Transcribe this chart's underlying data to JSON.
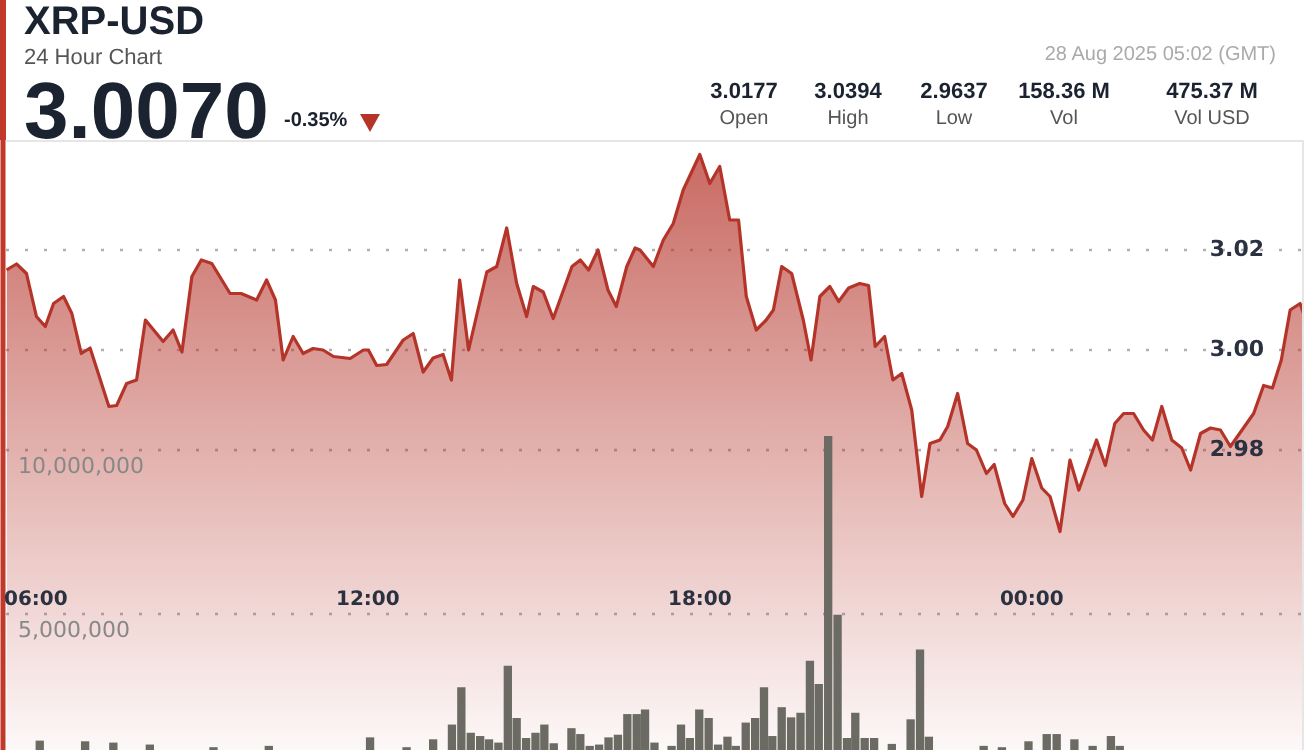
{
  "chart_data": {
    "type": "area",
    "title": "XRP-USD",
    "subtitle": "24 Hour Chart",
    "annotations": [
      "3.0070",
      "-0.35%",
      "28 Aug 2025 05:02 (GMT)",
      "3.0177",
      "Open",
      "3.0394",
      "High",
      "2.9637",
      "Low",
      "158.36 M",
      "Vol",
      "475.37 M",
      "Vol USD"
    ],
    "xlim": [
      5.46,
      28.92
    ],
    "xticks": [
      {
        "value": 6,
        "label": "06:00"
      },
      {
        "value": 12,
        "label": "12:00"
      },
      {
        "value": 18,
        "label": "18:00"
      },
      {
        "value": 24,
        "label": "00:00"
      }
    ],
    "ylim": [
      2.9144,
      3.042
    ],
    "yticks": [
      2.98,
      {
        "value": 3,
        "label": "3.00"
      },
      3.02
    ],
    "y2lim": [
      0,
      19460000
    ],
    "y2ticks": [
      {
        "value": 5000000,
        "label": "5,000,000"
      },
      {
        "value": 10000000,
        "label": "10,000,000"
      }
    ],
    "grid": "y",
    "series": [
      {
        "color": "#b5342a",
        "x": [
          5.47,
          5.65,
          5.83,
          6.01,
          6.17,
          6.32,
          6.5,
          6.65,
          6.82,
          6.98,
          7.32,
          7.46,
          7.64,
          7.82,
          7.98,
          8.3,
          8.48,
          8.64,
          8.82,
          8.99,
          9.18,
          9.51,
          9.71,
          9.99,
          10.17,
          10.33,
          10.47,
          10.65,
          10.83,
          11.01,
          11.19,
          11.38,
          11.68,
          11.92,
          12.01,
          12.16,
          12.34,
          12.64,
          12.82,
          13.0,
          13.18,
          13.36,
          13.51,
          13.66,
          13.82,
          14.15,
          14.33,
          14.51,
          14.69,
          14.87,
          14.99,
          15.17,
          15.35,
          15.69,
          15.84,
          15.99,
          16.16,
          16.34,
          16.49,
          16.68,
          16.83,
          16.92,
          17.16,
          17.34,
          17.52,
          17.7,
          18.0,
          18.18,
          18.36,
          18.54,
          18.7,
          18.84,
          19.02,
          19.2,
          19.33,
          19.48,
          19.66,
          19.87,
          20.01,
          20.17,
          20.35,
          20.51,
          20.69,
          20.89,
          21.05,
          21.17,
          21.34,
          21.49,
          21.65,
          21.83,
          22.01,
          22.16,
          22.34,
          22.48,
          22.66,
          22.84,
          23.0,
          23.18,
          23.32,
          23.51,
          23.66,
          23.84,
          24.0,
          24.18,
          24.33,
          24.51,
          24.69,
          24.85,
          25.17,
          25.33,
          25.5,
          25.66,
          25.84,
          26.02,
          26.18,
          26.35,
          26.53,
          26.71,
          26.87,
          27.05,
          27.23,
          27.41,
          27.59,
          28.01,
          28.19,
          28.35,
          28.51,
          28.67,
          28.85,
          28.92
        ],
        "values": [
          3.016,
          3.0172,
          3.0153,
          3.0067,
          3.0047,
          3.0093,
          3.0107,
          3.0073,
          2.9993,
          3.0004,
          2.9887,
          2.9889,
          2.9933,
          2.994,
          3.006,
          3.0017,
          3.004,
          2.9996,
          3.0147,
          3.018,
          3.0173,
          3.0113,
          3.0113,
          3.01,
          3.014,
          3.01,
          2.998,
          3.0027,
          2.9993,
          3.0003,
          3.0,
          2.9987,
          2.9983,
          3.0,
          3.0,
          2.9969,
          2.9971,
          3.002,
          3.0033,
          2.9956,
          2.9984,
          2.9991,
          2.994,
          3.014,
          3.0,
          3.0156,
          3.0167,
          3.0244,
          3.0133,
          3.0067,
          3.0127,
          3.0116,
          3.0063,
          3.0167,
          3.018,
          3.016,
          3.02,
          3.012,
          3.0087,
          3.0167,
          3.0204,
          3.02,
          3.0167,
          3.022,
          3.0253,
          3.032,
          3.0391,
          3.0333,
          3.0367,
          3.026,
          3.026,
          3.0107,
          3.004,
          3.006,
          3.008,
          3.0167,
          3.0153,
          3.006,
          2.998,
          3.0107,
          3.0127,
          3.0097,
          3.0124,
          3.0133,
          3.0129,
          3.0007,
          3.0027,
          2.994,
          2.9953,
          2.988,
          2.9707,
          2.9813,
          2.982,
          2.9847,
          2.9913,
          2.9813,
          2.98,
          2.9753,
          2.9771,
          2.9693,
          2.9667,
          2.97,
          2.9783,
          2.9724,
          2.9707,
          2.9637,
          2.978,
          2.972,
          2.982,
          2.9769,
          2.9853,
          2.9873,
          2.9873,
          2.984,
          2.982,
          2.9887,
          2.982,
          2.9804,
          2.976,
          2.9833,
          2.9844,
          2.984,
          2.9807,
          2.9873,
          2.9929,
          2.9924,
          2.998,
          3.008,
          3.0093,
          3.007
        ]
      },
      {
        "type": "bar",
        "axis": "y2",
        "color": "#6b6b63",
        "x": [
          6.07,
          6.89,
          7.4,
          8.06,
          9.21,
          10.21,
          12.04,
          12.7,
          13.18,
          13.52,
          13.69,
          13.86,
          14.03,
          14.19,
          14.36,
          14.53,
          14.69,
          14.86,
          15.03,
          15.19,
          15.36,
          15.68,
          15.84,
          16.01,
          16.18,
          16.35,
          16.52,
          16.69,
          16.86,
          17.01,
          17.18,
          17.49,
          17.66,
          17.82,
          17.99,
          18.16,
          18.33,
          18.5,
          18.65,
          18.83,
          19.0,
          19.16,
          19.31,
          19.48,
          19.65,
          19.82,
          19.99,
          20.15,
          20.32,
          20.49,
          20.66,
          20.81,
          20.98,
          21.15,
          21.47,
          21.81,
          21.98,
          22.14,
          23.13,
          23.46,
          23.94,
          24.27,
          24.45,
          24.77,
          25.1,
          25.43,
          25.59
        ],
        "values": [
          1120000,
          1100000,
          1060000,
          1000000,
          920000,
          960000,
          1220000,
          920000,
          1160000,
          1610000,
          2750000,
          1360000,
          1260000,
          1160000,
          1060000,
          3400000,
          1810000,
          1200000,
          1360000,
          1610000,
          1040000,
          1500000,
          1320000,
          960000,
          1000000,
          1220000,
          1300000,
          1930000,
          1930000,
          2070000,
          1060000,
          960000,
          1610000,
          1200000,
          2070000,
          1810000,
          1000000,
          1240000,
          960000,
          1670000,
          1810000,
          2750000,
          1260000,
          2140000,
          1830000,
          1970000,
          3560000,
          2850000,
          10410000,
          4960000,
          1200000,
          1970000,
          1200000,
          1200000,
          1020000,
          1770000,
          3900000,
          1240000,
          960000,
          920000,
          1100000,
          1320000,
          1320000,
          1160000,
          960000,
          1260000,
          960000
        ]
      }
    ]
  }
}
